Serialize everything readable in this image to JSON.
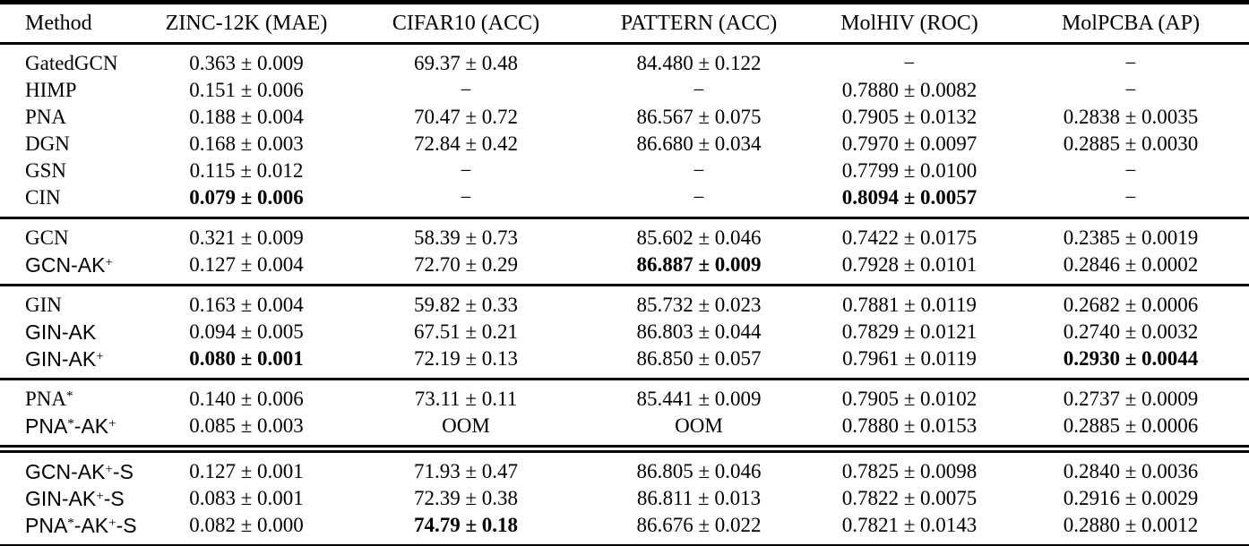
{
  "colors": {
    "background": "#ffffff",
    "text": "#000000",
    "rule": "#000000"
  },
  "table": {
    "columns": [
      "Method",
      "ZINC-12K (MAE)",
      "CIFAR10 (ACC)",
      "PATTERN (ACC)",
      "MolHIV (ROC)",
      "MolPCBA (AP)"
    ],
    "plus_minus_symbol": "±",
    "dash_symbol": "−",
    "sections": [
      {
        "rows": [
          {
            "method": {
              "sans": false,
              "segments": [
                {
                  "text": "GatedGCN",
                  "sup": false
                }
              ]
            },
            "cells": [
              {
                "text": "0.363 ± 0.009",
                "bold": false
              },
              {
                "text": "69.37 ± 0.48",
                "bold": false
              },
              {
                "text": "84.480 ± 0.122",
                "bold": false
              },
              {
                "text": "−",
                "bold": false
              },
              {
                "text": "−",
                "bold": false
              }
            ]
          },
          {
            "method": {
              "sans": false,
              "segments": [
                {
                  "text": "HIMP",
                  "sup": false
                }
              ]
            },
            "cells": [
              {
                "text": "0.151 ± 0.006",
                "bold": false
              },
              {
                "text": "−",
                "bold": false
              },
              {
                "text": "−",
                "bold": false
              },
              {
                "text": "0.7880 ± 0.0082",
                "bold": false
              },
              {
                "text": "−",
                "bold": false
              }
            ]
          },
          {
            "method": {
              "sans": false,
              "segments": [
                {
                  "text": "PNA",
                  "sup": false
                }
              ]
            },
            "cells": [
              {
                "text": "0.188 ± 0.004",
                "bold": false
              },
              {
                "text": "70.47 ± 0.72",
                "bold": false
              },
              {
                "text": "86.567 ± 0.075",
                "bold": false
              },
              {
                "text": "0.7905 ± 0.0132",
                "bold": false
              },
              {
                "text": "0.2838 ± 0.0035",
                "bold": false
              }
            ]
          },
          {
            "method": {
              "sans": false,
              "segments": [
                {
                  "text": "DGN",
                  "sup": false
                }
              ]
            },
            "cells": [
              {
                "text": "0.168 ± 0.003",
                "bold": false
              },
              {
                "text": "72.84 ± 0.42",
                "bold": false
              },
              {
                "text": "86.680 ± 0.034",
                "bold": false
              },
              {
                "text": "0.7970 ± 0.0097",
                "bold": false
              },
              {
                "text": "0.2885 ± 0.0030",
                "bold": false
              }
            ]
          },
          {
            "method": {
              "sans": false,
              "segments": [
                {
                  "text": "GSN",
                  "sup": false
                }
              ]
            },
            "cells": [
              {
                "text": "0.115 ± 0.012",
                "bold": false
              },
              {
                "text": "−",
                "bold": false
              },
              {
                "text": "−",
                "bold": false
              },
              {
                "text": "0.7799 ± 0.0100",
                "bold": false
              },
              {
                "text": "−",
                "bold": false
              }
            ]
          },
          {
            "method": {
              "sans": false,
              "segments": [
                {
                  "text": "CIN",
                  "sup": false
                }
              ]
            },
            "cells": [
              {
                "text": "0.079 ± 0.006",
                "bold": true
              },
              {
                "text": "−",
                "bold": false
              },
              {
                "text": "−",
                "bold": false
              },
              {
                "text": "0.8094 ± 0.0057",
                "bold": true
              },
              {
                "text": "−",
                "bold": false
              }
            ]
          }
        ]
      },
      {
        "rows": [
          {
            "method": {
              "sans": false,
              "segments": [
                {
                  "text": "GCN",
                  "sup": false
                }
              ]
            },
            "cells": [
              {
                "text": "0.321 ± 0.009",
                "bold": false
              },
              {
                "text": "58.39 ± 0.73",
                "bold": false
              },
              {
                "text": "85.602 ± 0.046",
                "bold": false
              },
              {
                "text": "0.7422 ± 0.0175",
                "bold": false
              },
              {
                "text": "0.2385 ± 0.0019",
                "bold": false
              }
            ]
          },
          {
            "method": {
              "sans": true,
              "segments": [
                {
                  "text": "GCN-AK",
                  "sup": false
                },
                {
                  "text": "+",
                  "sup": true
                }
              ]
            },
            "cells": [
              {
                "text": "0.127 ± 0.004",
                "bold": false
              },
              {
                "text": "72.70 ± 0.29",
                "bold": false
              },
              {
                "text": "86.887 ± 0.009",
                "bold": true
              },
              {
                "text": "0.7928 ± 0.0101",
                "bold": false
              },
              {
                "text": "0.2846 ± 0.0002",
                "bold": false
              }
            ]
          }
        ]
      },
      {
        "rows": [
          {
            "method": {
              "sans": false,
              "segments": [
                {
                  "text": "GIN",
                  "sup": false
                }
              ]
            },
            "cells": [
              {
                "text": "0.163 ± 0.004",
                "bold": false
              },
              {
                "text": "59.82 ± 0.33",
                "bold": false
              },
              {
                "text": "85.732 ± 0.023",
                "bold": false
              },
              {
                "text": "0.7881 ± 0.0119",
                "bold": false
              },
              {
                "text": "0.2682 ± 0.0006",
                "bold": false
              }
            ]
          },
          {
            "method": {
              "sans": true,
              "segments": [
                {
                  "text": "GIN-AK",
                  "sup": false
                }
              ]
            },
            "cells": [
              {
                "text": "0.094 ± 0.005",
                "bold": false
              },
              {
                "text": "67.51 ± 0.21",
                "bold": false
              },
              {
                "text": "86.803 ± 0.044",
                "bold": false
              },
              {
                "text": "0.7829 ± 0.0121",
                "bold": false
              },
              {
                "text": "0.2740 ± 0.0032",
                "bold": false
              }
            ]
          },
          {
            "method": {
              "sans": true,
              "segments": [
                {
                  "text": "GIN-AK",
                  "sup": false
                },
                {
                  "text": "+",
                  "sup": true
                }
              ]
            },
            "cells": [
              {
                "text": "0.080 ± 0.001",
                "bold": true
              },
              {
                "text": "72.19 ± 0.13",
                "bold": false
              },
              {
                "text": "86.850 ± 0.057",
                "bold": false
              },
              {
                "text": "0.7961 ± 0.0119",
                "bold": false
              },
              {
                "text": "0.2930 ± 0.0044",
                "bold": true
              }
            ]
          }
        ]
      },
      {
        "rows": [
          {
            "method": {
              "sans": false,
              "segments": [
                {
                  "text": "PNA",
                  "sup": false
                },
                {
                  "text": "*",
                  "sup": true
                }
              ]
            },
            "cells": [
              {
                "text": "0.140 ± 0.006",
                "bold": false
              },
              {
                "text": "73.11 ± 0.11",
                "bold": false
              },
              {
                "text": "85.441 ± 0.009",
                "bold": false
              },
              {
                "text": "0.7905 ± 0.0102",
                "bold": false
              },
              {
                "text": "0.2737 ± 0.0009",
                "bold": false
              }
            ]
          },
          {
            "method": {
              "sans": true,
              "segments": [
                {
                  "text": "PNA",
                  "sup": false
                },
                {
                  "text": "*",
                  "sup": true
                },
                {
                  "text": "-AK",
                  "sup": false
                },
                {
                  "text": "+",
                  "sup": true
                }
              ]
            },
            "cells": [
              {
                "text": "0.085 ± 0.003",
                "bold": false
              },
              {
                "text": "OOM",
                "bold": false
              },
              {
                "text": "OOM",
                "bold": false
              },
              {
                "text": "0.7880 ± 0.0153",
                "bold": false
              },
              {
                "text": "0.2885 ± 0.0006",
                "bold": false
              }
            ]
          }
        ]
      },
      {
        "rows": [
          {
            "method": {
              "sans": true,
              "segments": [
                {
                  "text": "GCN-AK",
                  "sup": false
                },
                {
                  "text": "+",
                  "sup": true
                },
                {
                  "text": "-S",
                  "sup": false
                }
              ]
            },
            "cells": [
              {
                "text": "0.127 ± 0.001",
                "bold": false
              },
              {
                "text": "71.93 ± 0.47",
                "bold": false
              },
              {
                "text": "86.805 ± 0.046",
                "bold": false
              },
              {
                "text": "0.7825 ± 0.0098",
                "bold": false
              },
              {
                "text": "0.2840 ± 0.0036",
                "bold": false
              }
            ]
          },
          {
            "method": {
              "sans": true,
              "segments": [
                {
                  "text": "GIN-AK",
                  "sup": false
                },
                {
                  "text": "+",
                  "sup": true
                },
                {
                  "text": "-S",
                  "sup": false
                }
              ]
            },
            "cells": [
              {
                "text": "0.083 ± 0.001",
                "bold": false
              },
              {
                "text": "72.39 ± 0.38",
                "bold": false
              },
              {
                "text": "86.811 ± 0.013",
                "bold": false
              },
              {
                "text": "0.7822 ± 0.0075",
                "bold": false
              },
              {
                "text": "0.2916 ± 0.0029",
                "bold": false
              }
            ]
          },
          {
            "method": {
              "sans": true,
              "segments": [
                {
                  "text": "PNA",
                  "sup": false
                },
                {
                  "text": "*",
                  "sup": true
                },
                {
                  "text": "-AK",
                  "sup": false
                },
                {
                  "text": "+",
                  "sup": true
                },
                {
                  "text": "-S",
                  "sup": false
                }
              ]
            },
            "cells": [
              {
                "text": "0.082 ± 0.000",
                "bold": false
              },
              {
                "text": "74.79 ± 0.18",
                "bold": true
              },
              {
                "text": "86.676 ± 0.022",
                "bold": false
              },
              {
                "text": "0.7821 ± 0.0143",
                "bold": false
              },
              {
                "text": "0.2880 ± 0.0012",
                "bold": false
              }
            ]
          }
        ]
      }
    ]
  }
}
